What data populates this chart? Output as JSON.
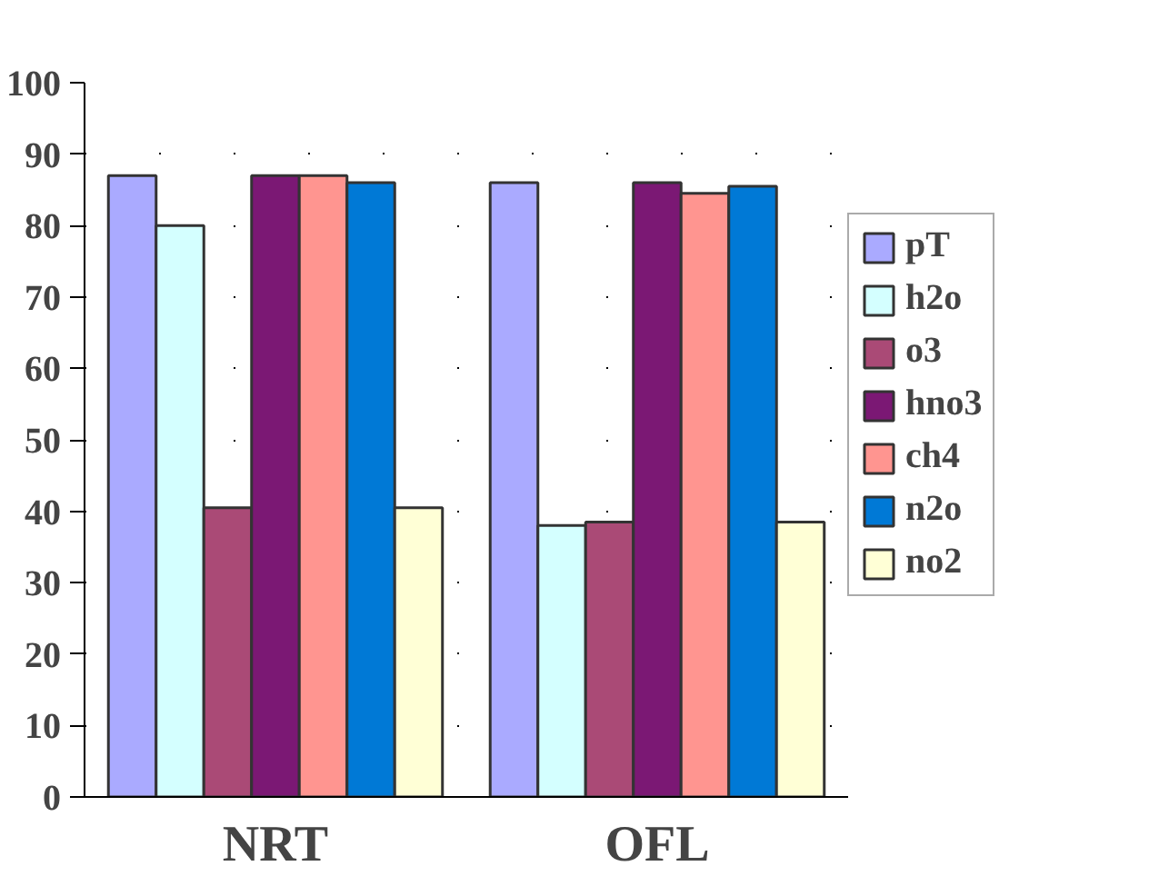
{
  "chart_data": {
    "type": "bar",
    "categories": [
      "NRT",
      "OFL"
    ],
    "series": [
      {
        "name": "pT",
        "color": "#aaaaff",
        "values": [
          87,
          86
        ]
      },
      {
        "name": "h2o",
        "color": "#d4ffff",
        "values": [
          80,
          38
        ]
      },
      {
        "name": "o3",
        "color": "#aa4a76",
        "values": [
          40.5,
          38.5
        ]
      },
      {
        "name": "hno3",
        "color": "#7b1874",
        "values": [
          87,
          86
        ]
      },
      {
        "name": "ch4",
        "color": "#ff9590",
        "values": [
          87,
          84.5
        ]
      },
      {
        "name": "n2o",
        "color": "#0079d6",
        "values": [
          86,
          85.5
        ]
      },
      {
        "name": "no2",
        "color": "#ffffd6",
        "values": [
          40.5,
          38.5
        ]
      }
    ],
    "ylim": [
      0,
      100
    ],
    "yticks": [
      0,
      10,
      20,
      30,
      40,
      50,
      60,
      70,
      80,
      90,
      100
    ],
    "grid": "y",
    "legend": "right"
  }
}
